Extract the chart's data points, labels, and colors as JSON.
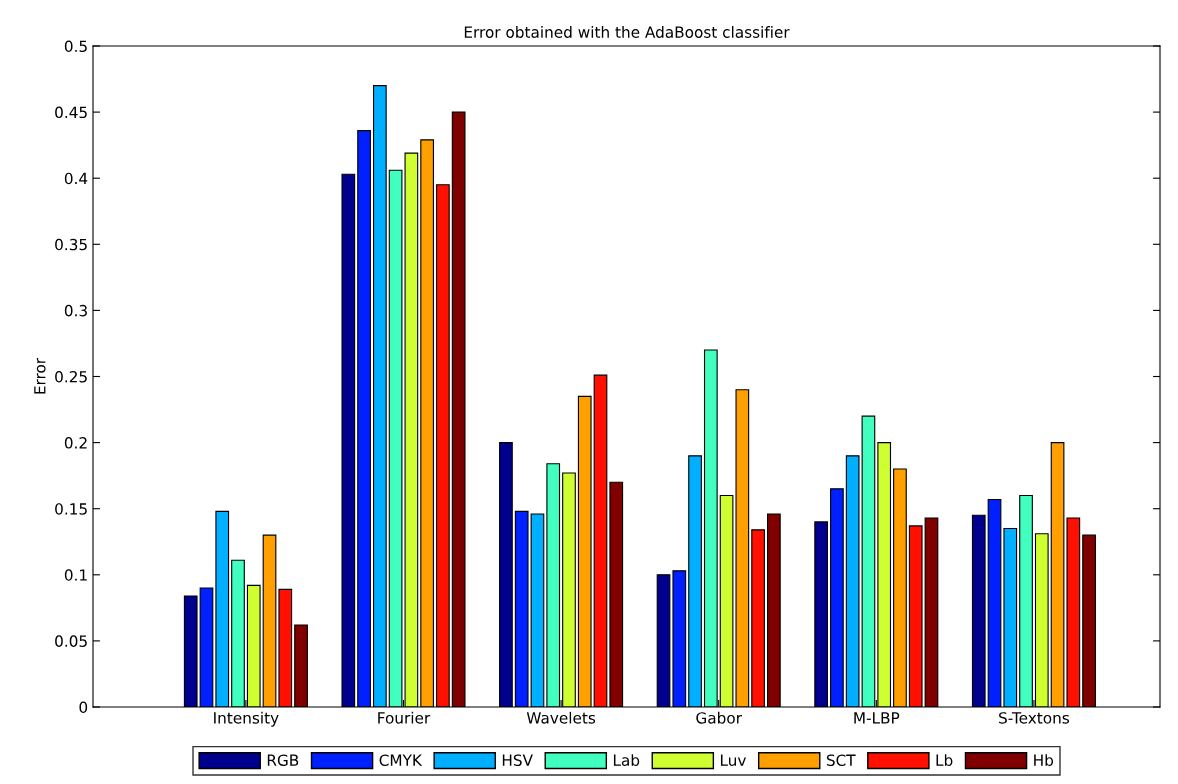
{
  "chart_data": {
    "type": "bar",
    "title": "Error obtained with the AdaBoost classifier",
    "ylabel": "Error",
    "categories": [
      "Intensity",
      "Fourier",
      "Wavelets",
      "Gabor",
      "M-LBP",
      "S-Textons"
    ],
    "series": [
      {
        "name": "RGB",
        "color": "#00008f",
        "values": [
          0.084,
          0.403,
          0.2,
          0.1,
          0.14,
          0.145
        ]
      },
      {
        "name": "CMYK",
        "color": "#0020ff",
        "values": [
          0.09,
          0.436,
          0.148,
          0.103,
          0.165,
          0.157
        ]
      },
      {
        "name": "HSV",
        "color": "#00afff",
        "values": [
          0.148,
          0.47,
          0.146,
          0.19,
          0.19,
          0.135
        ]
      },
      {
        "name": "Lab",
        "color": "#40ffbf",
        "values": [
          0.111,
          0.406,
          0.184,
          0.27,
          0.22,
          0.16
        ]
      },
      {
        "name": "Luv",
        "color": "#cfff30",
        "values": [
          0.092,
          0.419,
          0.177,
          0.16,
          0.2,
          0.131
        ]
      },
      {
        "name": "SCT",
        "color": "#ffa000",
        "values": [
          0.13,
          0.429,
          0.235,
          0.24,
          0.18,
          0.2
        ]
      },
      {
        "name": "Lb",
        "color": "#ff1000",
        "values": [
          0.089,
          0.395,
          0.251,
          0.134,
          0.137,
          0.143
        ]
      },
      {
        "name": "Hb",
        "color": "#800000",
        "values": [
          0.062,
          0.45,
          0.17,
          0.146,
          0.143,
          0.13
        ]
      }
    ],
    "ylim": [
      0,
      0.5
    ],
    "yticks": [
      0,
      0.05,
      0.1,
      0.15,
      0.2,
      0.25,
      0.3,
      0.35,
      0.4,
      0.45,
      0.5
    ],
    "grid": false,
    "legend": "bottom"
  }
}
